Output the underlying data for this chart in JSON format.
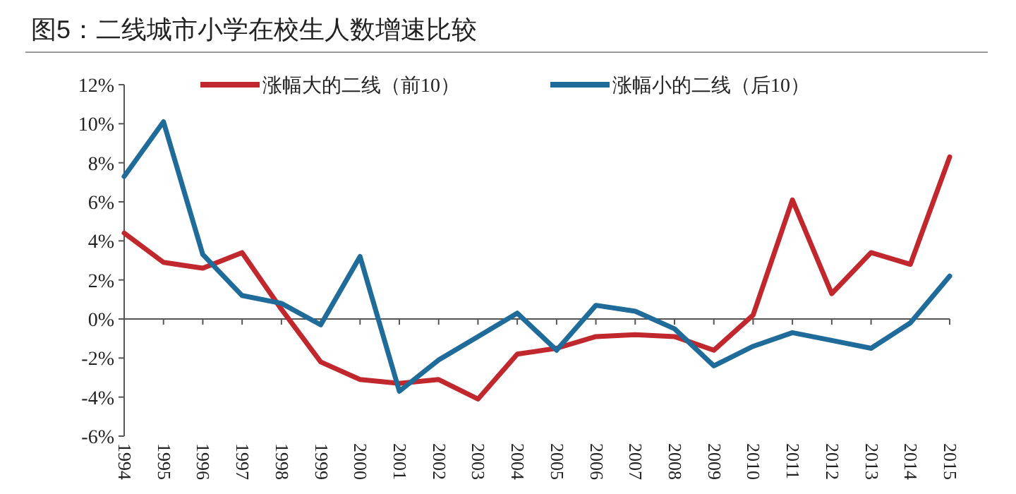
{
  "chart_data": {
    "type": "line",
    "title": "图5：二线城市小学在校生人数增速比较",
    "categories": [
      "1994",
      "1995",
      "1996",
      "1997",
      "1998",
      "1999",
      "2000",
      "2001",
      "2002",
      "2003",
      "2004",
      "2005",
      "2006",
      "2007",
      "2008",
      "2009",
      "2010",
      "2011",
      "2012",
      "2013",
      "2014",
      "2015"
    ],
    "series": [
      {
        "name": "涨幅大的二线（前10）",
        "color": "#c0282d",
        "values": [
          4.4,
          2.9,
          2.6,
          3.4,
          0.5,
          -2.2,
          -3.1,
          -3.3,
          -3.1,
          -4.1,
          -1.8,
          -1.5,
          -0.9,
          -0.8,
          -0.9,
          -1.6,
          0.2,
          6.1,
          1.3,
          3.4,
          2.8,
          8.3
        ]
      },
      {
        "name": "涨幅小的二线（后10）",
        "color": "#1f6b9a",
        "values": [
          7.3,
          10.1,
          3.3,
          1.2,
          0.8,
          -0.3,
          3.2,
          -3.7,
          -2.1,
          -0.9,
          0.3,
          -1.6,
          0.7,
          0.4,
          -0.5,
          -2.4,
          -1.4,
          -0.7,
          -1.1,
          -1.5,
          -0.2,
          2.2
        ]
      }
    ],
    "ylim": [
      -6,
      12
    ],
    "yticks": [
      {
        "value": -6,
        "label": "-6%"
      },
      {
        "value": -4,
        "label": "-4%"
      },
      {
        "value": -2,
        "label": "-2%"
      },
      {
        "value": 0,
        "label": "0%"
      },
      {
        "value": 2,
        "label": "2%"
      },
      {
        "value": 4,
        "label": "4%"
      },
      {
        "value": 6,
        "label": "6%"
      },
      {
        "value": 8,
        "label": "8%"
      },
      {
        "value": 10,
        "label": "10%"
      },
      {
        "value": 12,
        "label": "12%"
      }
    ],
    "legend": "top",
    "marker": "none",
    "line_style": "solid"
  }
}
